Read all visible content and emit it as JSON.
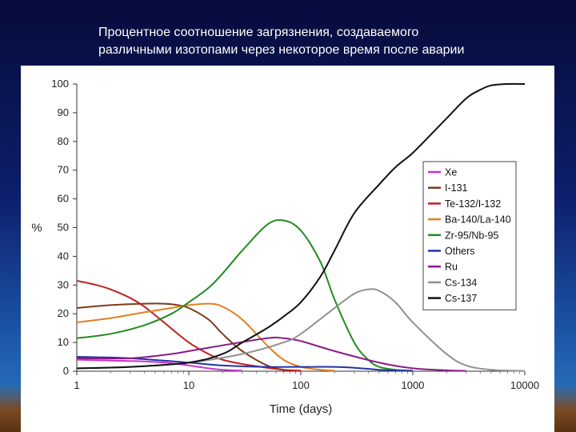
{
  "slide": {
    "title_line1": "Процентное соотношение загрязнения, создаваемого",
    "title_line2": "различными изотопами через некоторое время после аварии"
  },
  "chart_data": {
    "type": "line",
    "xlabel": "Time (days)",
    "ylabel": "%",
    "xscale": "log",
    "xlim": [
      1,
      10000
    ],
    "ylim": [
      0,
      100
    ],
    "xticks": [
      1,
      10,
      100,
      1000,
      10000
    ],
    "xtick_labels": [
      "1",
      "10",
      "100",
      "1000",
      "10000"
    ],
    "yticks": [
      0,
      10,
      20,
      30,
      40,
      50,
      60,
      70,
      80,
      90,
      100
    ],
    "grid": false,
    "legend_position": "right",
    "series": [
      {
        "name": "Xe",
        "color": "#cc33cc",
        "x": [
          1,
          2,
          4,
          7,
          10,
          15,
          20,
          30
        ],
        "y": [
          4,
          3.7,
          3.4,
          2.8,
          2.0,
          1.0,
          0.5,
          0.2
        ]
      },
      {
        "name": "I-131",
        "color": "#7a3b1c",
        "x": [
          1,
          2,
          4,
          6,
          8,
          10,
          15,
          20,
          30,
          50,
          70,
          100
        ],
        "y": [
          22,
          23,
          23.5,
          23.5,
          23,
          22,
          18,
          13,
          7,
          2,
          0.5,
          0.1
        ]
      },
      {
        "name": "Te-132/I-132",
        "color": "#c02020",
        "x": [
          1,
          1.5,
          2,
          3,
          4,
          6,
          10,
          15,
          20,
          30,
          50,
          70,
          100
        ],
        "y": [
          31.5,
          30,
          28.5,
          25.5,
          22.5,
          17,
          10,
          6,
          4,
          2.5,
          1.2,
          0.5,
          0.2
        ]
      },
      {
        "name": "Ba-140/La-140",
        "color": "#e08020",
        "x": [
          1,
          2,
          4,
          7,
          10,
          15,
          20,
          30,
          50,
          70,
          100,
          150,
          200
        ],
        "y": [
          17,
          18.5,
          20.5,
          22,
          23,
          23.5,
          22.5,
          18,
          9,
          4,
          1.5,
          0.5,
          0.2
        ]
      },
      {
        "name": "Zr-95/Nb-95",
        "color": "#228b22",
        "x": [
          1,
          2,
          4,
          7,
          10,
          15,
          20,
          30,
          50,
          70,
          100,
          150,
          200,
          300,
          400,
          500,
          700,
          1000
        ],
        "y": [
          11.5,
          13,
          16,
          20,
          24,
          29,
          34,
          42,
          51,
          52.5,
          49,
          38,
          25,
          10,
          4,
          1.5,
          0.5,
          0.2
        ]
      },
      {
        "name": "Others",
        "color": "#2233aa",
        "x": [
          1,
          3,
          10,
          20,
          50,
          100,
          200,
          300,
          500,
          700,
          1000
        ],
        "y": [
          5,
          4.5,
          3,
          2,
          1.5,
          1.5,
          1.5,
          1.2,
          0.5,
          0.2,
          0.1
        ]
      },
      {
        "name": "Ru",
        "color": "#8a1a8a",
        "x": [
          1,
          3,
          7,
          10,
          20,
          50,
          70,
          100,
          200,
          500,
          1000,
          2000,
          3000
        ],
        "y": [
          4.5,
          4.5,
          6,
          7,
          9,
          11.5,
          11.5,
          10.5,
          7,
          3,
          1,
          0.3,
          0.1
        ]
      },
      {
        "name": "Cs-134",
        "color": "#909090",
        "x": [
          1,
          3,
          10,
          30,
          70,
          100,
          200,
          300,
          400,
          500,
          700,
          1000,
          2000,
          3000,
          5000,
          10000
        ],
        "y": [
          1,
          1.5,
          3,
          6,
          10,
          13,
          22,
          27,
          28.5,
          28,
          24,
          17,
          6,
          2,
          0.5,
          0.1
        ]
      },
      {
        "name": "Cs-137",
        "color": "#111111",
        "x": [
          1,
          3,
          10,
          20,
          30,
          50,
          70,
          100,
          150,
          200,
          300,
          500,
          700,
          1000,
          1500,
          2000,
          3000,
          4000,
          5000,
          7000,
          10000
        ],
        "y": [
          1,
          1.5,
          3,
          6,
          10,
          15,
          19,
          24,
          33,
          42,
          55,
          65,
          71,
          76,
          83,
          88,
          95,
          98,
          99.5,
          100,
          100
        ]
      }
    ]
  }
}
